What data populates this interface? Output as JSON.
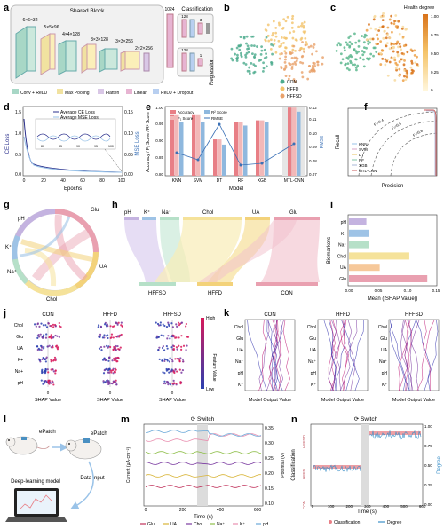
{
  "panel_letters": [
    "a",
    "b",
    "c",
    "d",
    "e",
    "f",
    "g",
    "h",
    "i",
    "j",
    "k",
    "l",
    "m",
    "n"
  ],
  "a": {
    "shared_block_title": "Shared Block",
    "layer_dims": [
      "6×6×32",
      "5×5×96",
      "4×4×128",
      "3×3×128",
      "3×3×256",
      "2×2×256"
    ],
    "fc_dim": "1024",
    "classification_title": "Classification",
    "cls_dims": [
      "128",
      "3"
    ],
    "reg_dims": [
      "128",
      "1"
    ],
    "regression_title": "Regression",
    "legend": [
      "Conv + ReLU",
      "Max Pooling",
      "Flatten",
      "Linear",
      "ReLU + Dropout"
    ]
  },
  "b": {
    "legend": [
      "CON",
      "HFFD",
      "HFFSD"
    ],
    "colors": [
      "#4cab8d",
      "#f3c36b",
      "#e9a16a"
    ]
  },
  "c": {
    "colorbar_title": "Health degree",
    "ticks": [
      "1.00",
      "0.75",
      "0.50",
      "0.25",
      "0"
    ]
  },
  "d": {
    "xlabel": "Epochs",
    "ylabel_left": "CE Loss",
    "ylabel_right": "MSE Loss",
    "legend": [
      "Average CE Loss",
      "Average MSE Loss"
    ],
    "xticks": [
      "0",
      "20",
      "40",
      "60",
      "80",
      "100"
    ],
    "yticks_left": [
      "0.0",
      "0.5",
      "1.0",
      "1.5"
    ],
    "yticks_right": [
      "0.00",
      "0.05",
      "0.10",
      "0.15"
    ],
    "inset_xticks": [
      "80",
      "85",
      "90",
      "95",
      "100"
    ]
  },
  "e": {
    "ylabel": "Accuracy / F₁ Score / R² Score",
    "ylabel_right": "RMSE",
    "xlabel": "Model",
    "legend": [
      "Accuracy",
      "F₁ Score",
      "R² Score",
      "RMSE"
    ],
    "yticks": [
      "0.80",
      "0.85",
      "0.90",
      "0.95",
      "1.00"
    ],
    "yticks_right": [
      "0.07",
      "0.08",
      "0.09",
      "0.10",
      "0.11",
      "0.12"
    ]
  },
  "f": {
    "xlabel": "Precision",
    "ylabel": "Recall",
    "legend": [
      "KNN",
      "SVM",
      "DT",
      "RF",
      "XGB",
      "MTL-CNN"
    ],
    "iso": [
      "F₁=0.8",
      "F₁=0.6",
      "F₁=0.4"
    ]
  },
  "g": {
    "labels": [
      "Glu",
      "UA",
      "Chol",
      "Na⁺",
      "K⁺",
      "pH"
    ]
  },
  "h": {
    "top": [
      "pH",
      "K⁺",
      "Na⁺",
      "Chol",
      "UA",
      "Glu"
    ],
    "bottom": [
      "HFFSD",
      "HFFD",
      "CON"
    ]
  },
  "i": {
    "ylabel": "Biomarkers",
    "xlabel": "Mean (|SHAP Value|)",
    "xticks": [
      "0.00",
      "0.05",
      "0.10",
      "0.15"
    ]
  },
  "j": {
    "titles": [
      "CON",
      "HFFD",
      "HFFSD"
    ],
    "features": [
      "Chol",
      "Glu",
      "UA",
      "K+",
      "Na+",
      "pH"
    ],
    "xlabel": "SHAP Value",
    "colorbar": [
      "High",
      "Feature Value",
      "Low"
    ]
  },
  "k": {
    "titles": [
      "CON",
      "HFFD",
      "HFFSD"
    ],
    "features": [
      "Chol",
      "Glu",
      "UA",
      "Na⁺",
      "pH",
      "K⁺"
    ],
    "xlabel": "Model Output Value"
  },
  "l": {
    "labels": [
      "ePatch",
      "ePatch",
      "Deep-learning model",
      "Data input"
    ]
  },
  "m": {
    "title": "Switch",
    "xlabel": "Time (s)",
    "ylabel": "Current (μA·cm⁻²)",
    "ylabel_right": "Potential (V)",
    "xticks": [
      "0",
      "200",
      "400",
      "600"
    ],
    "yticks_right": [
      "0.35",
      "0.30",
      "0.25",
      "0.20",
      "0.15",
      "0.10"
    ],
    "legend": [
      "Glu",
      "UA",
      "Chol",
      "Na⁺",
      "K⁺",
      "pH"
    ]
  },
  "n": {
    "title": "Switch",
    "xlabel": "Time (s)",
    "ylabel": "Classification",
    "ylabel_right": "Degree",
    "classes": [
      "HFFSD",
      "HFFD",
      "CON"
    ],
    "xticks": [
      "0",
      "100",
      "200",
      "300",
      "400",
      "500",
      "600"
    ],
    "yticks_right": [
      "1.00",
      "0.75",
      "0.50",
      "0.25",
      "0.00"
    ],
    "legend": [
      "Classification",
      "Degree"
    ]
  },
  "colors": {
    "accuracy": "#e87f86",
    "f1": "#f2b8b8",
    "r2": "#8fb8de",
    "rmse": "#3a70b6",
    "ce": "#2a2f8c",
    "mse": "#9ac3e8"
  }
}
